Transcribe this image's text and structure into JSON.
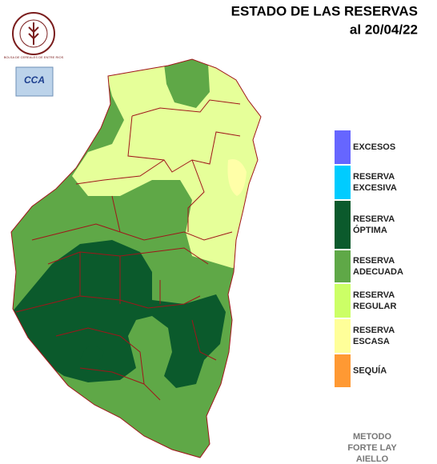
{
  "header": {
    "title": "ESTADO DE LAS RESERVAS",
    "date": "al 20/04/22"
  },
  "logos": {
    "emblem": "BOLSA DE CEREALES DE ENTRE RIOS",
    "badge": "CCA"
  },
  "legend": {
    "items": [
      {
        "lines": [
          "EXCESOS"
        ],
        "color": "#6666ff"
      },
      {
        "lines": [
          "RESERVA",
          "EXCESIVA"
        ],
        "color": "#00ccff"
      },
      {
        "lines": [
          "RESERVA",
          "ÓPTIMA"
        ],
        "color": "#0b5a2c"
      },
      {
        "lines": [
          "RESERVA",
          "ADECUADA"
        ],
        "color": "#5fa847"
      },
      {
        "lines": [
          "RESERVA",
          "REGULAR"
        ],
        "color": "#ccff66"
      },
      {
        "lines": [
          "RESERVA",
          "ESCASA"
        ],
        "color": "#ffff99"
      },
      {
        "lines": [
          "SEQUÍA"
        ],
        "color": "#ff9933"
      }
    ]
  },
  "method": {
    "lines": [
      "METODO",
      "FORTE LAY",
      "AIELLO"
    ]
  }
}
